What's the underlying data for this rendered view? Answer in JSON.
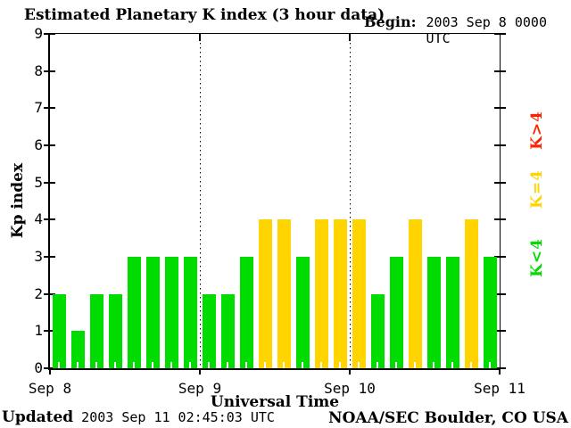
{
  "header": {
    "title": "Estimated Planetary K index (3 hour data)",
    "begin_label": "Begin:",
    "begin_value": "2003 Sep 8 0000 UTC"
  },
  "chart_data": {
    "type": "bar",
    "title": "Estimated Planetary K index (3 hour data)",
    "xlabel": "Universal Time",
    "ylabel": "Kp index",
    "ylim": [
      0,
      9
    ],
    "y_ticks": [
      0,
      1,
      2,
      3,
      4,
      5,
      6,
      7,
      8,
      9
    ],
    "x_tick_labels": [
      "Sep 8",
      "Sep 9",
      "Sep 10",
      "Sep 11"
    ],
    "interval_hours": 3,
    "begin": "2003 Sep 8 0000 UTC",
    "series": [
      {
        "date": "Sep 8",
        "values": [
          2,
          1,
          2,
          2,
          3,
          3,
          3,
          3
        ]
      },
      {
        "date": "Sep 9",
        "values": [
          2,
          2,
          3,
          4,
          4,
          3,
          4,
          4
        ]
      },
      {
        "date": "Sep 10",
        "values": [
          4,
          2,
          3,
          4,
          3,
          3,
          4,
          3
        ]
      }
    ],
    "color_rule": {
      "k_below_4": "#00DB00",
      "k_equal_4": "#FFD400",
      "k_above_4": "#FF2200"
    },
    "legend": [
      {
        "label": "K>4",
        "color": "#FF2200"
      },
      {
        "label": "K=4",
        "color": "#FFD400"
      },
      {
        "label": "K<4",
        "color": "#00DB00"
      }
    ],
    "grid": "vertical dotted lines at day boundaries",
    "legend_position": "right"
  },
  "footer": {
    "updated_label": "Updated",
    "updated_value": "2003 Sep 11 02:45:03 UTC",
    "credit": "NOAA/SEC Boulder, CO USA"
  }
}
